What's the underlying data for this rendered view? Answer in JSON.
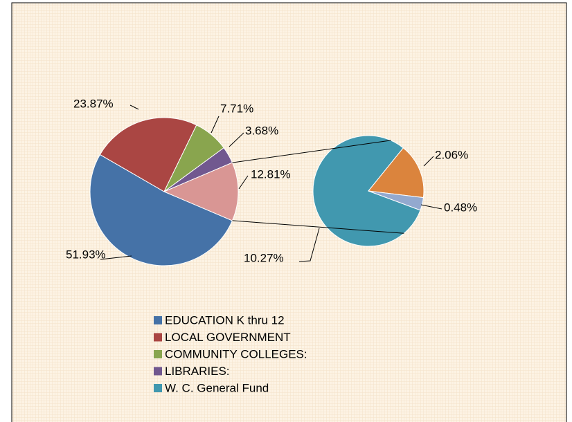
{
  "chart_data": {
    "type": "pie-of-pie",
    "values": [
      51.93,
      23.87,
      7.71,
      3.68,
      12.81
    ],
    "value_labels": [
      "51.93%",
      "23.87%",
      "7.71%",
      "3.68%",
      "12.81%"
    ],
    "names": [
      "EDUCATION K thru 12",
      "LOCAL GOVERNMENT",
      "COMMUNITY COLLEGES:",
      "LIBRARIES:",
      null
    ],
    "colors": [
      "#4572a7",
      "#aa4643",
      "#89a54e",
      "#71588f",
      "#d99694"
    ],
    "secondary": {
      "values": [
        10.27,
        2.06,
        0.48
      ],
      "value_labels": [
        "10.27%",
        "2.06%",
        "0.48%"
      ],
      "names": [
        "W. C. General Fund",
        null,
        null
      ],
      "colors": [
        "#4198af",
        "#db843d",
        "#93a9cf"
      ]
    },
    "legend": "bottom"
  }
}
